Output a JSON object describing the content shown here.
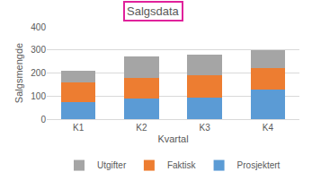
{
  "chart_data": {
    "type": "bar",
    "title": "Salgsdata",
    "x_label": "Kvartal",
    "y_label": "Salgsmengde",
    "categories": [
      "K1",
      "K2",
      "K3",
      "K4"
    ],
    "series": [
      {
        "name": "Prosjektert",
        "color": "#5b9bd5",
        "values": [
          75,
          90,
          95,
          130
        ]
      },
      {
        "name": "Faktisk",
        "color": "#ed7d31",
        "values": [
          85,
          90,
          95,
          90
        ]
      },
      {
        "name": "Utgifter",
        "color": "#a5a5a5",
        "values": [
          50,
          90,
          90,
          80
        ]
      }
    ],
    "stacked": true,
    "ylim": [
      0,
      400
    ],
    "yticks": [
      0,
      100,
      200,
      300,
      400
    ],
    "grid": true,
    "legend": "bottom"
  }
}
